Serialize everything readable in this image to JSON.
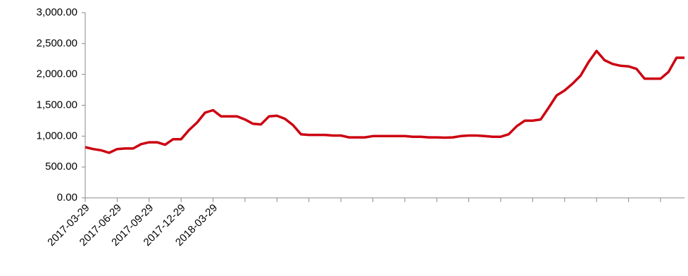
{
  "chart_data": {
    "type": "line",
    "color": "#cc0011",
    "categories": [
      "2017-03-29",
      null,
      null,
      null,
      "2017-06-29",
      null,
      null,
      null,
      "2017-09-29",
      null,
      null,
      null,
      "2017-12-29",
      null,
      null,
      null,
      "2018-03-29",
      null,
      null,
      null,
      null,
      null,
      null,
      null,
      null,
      null,
      null,
      null,
      null,
      null,
      null,
      null,
      null,
      null,
      null,
      null,
      null,
      null,
      null,
      null,
      null,
      null,
      null,
      null,
      null,
      null,
      null,
      null,
      null,
      null,
      null,
      null,
      null,
      null,
      null,
      null,
      null,
      null,
      null,
      null,
      null,
      null,
      null,
      null,
      null,
      null,
      null,
      null,
      null,
      null,
      null,
      null,
      null,
      null,
      null,
      null
    ],
    "values": [
      820,
      790,
      770,
      730,
      790,
      800,
      800,
      870,
      900,
      900,
      860,
      950,
      950,
      1100,
      1220,
      1380,
      1420,
      1320,
      1320,
      1320,
      1270,
      1200,
      1190,
      1320,
      1330,
      1280,
      1180,
      1030,
      1020,
      1020,
      1020,
      1010,
      1010,
      980,
      980,
      980,
      1000,
      1000,
      1000,
      1000,
      1000,
      990,
      990,
      980,
      980,
      975,
      980,
      1000,
      1010,
      1010,
      1000,
      990,
      990,
      1030,
      1160,
      1250,
      1250,
      1270,
      1460,
      1660,
      1740,
      1850,
      1980,
      2200,
      2380,
      2230,
      2170,
      2140,
      2130,
      2090,
      1930,
      1930,
      1930,
      2040,
      2270,
      2270
    ],
    "ylim": [
      0,
      3000
    ],
    "yticks": [
      {
        "value": 0,
        "label": "0.00"
      },
      {
        "value": 500,
        "label": "500.00"
      },
      {
        "value": 1000,
        "label": "1,000.00"
      },
      {
        "value": 1500,
        "label": "1,500.00"
      },
      {
        "value": 2000,
        "label": "2,000.00"
      },
      {
        "value": 2500,
        "label": "2,500.00"
      },
      {
        "value": 3000,
        "label": "3,000.00"
      }
    ]
  }
}
